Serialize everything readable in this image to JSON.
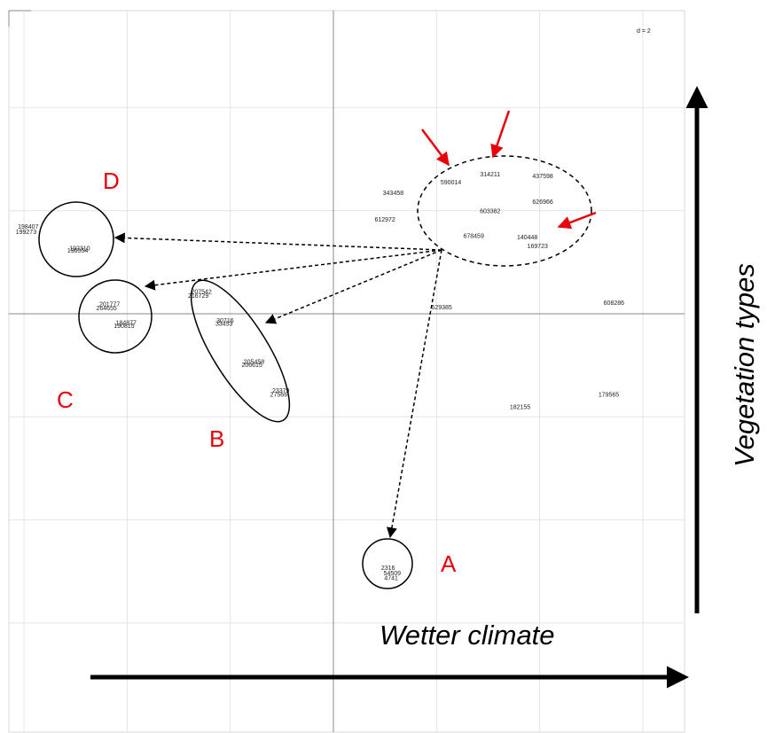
{
  "chart_data": {
    "type": "scatter",
    "title": "",
    "scale_label": "d = 2",
    "grid": true,
    "x_axis_annotation": "Wetter climate",
    "y_axis_annotation": "Vegetation types",
    "points": [
      {
        "id": "pt-590014",
        "label": "590014",
        "x": 1.14,
        "y": 1.27
      },
      {
        "id": "pt-314211",
        "label": "314211",
        "x": 1.52,
        "y": 1.35
      },
      {
        "id": "pt-437598",
        "label": "437598",
        "x": 2.03,
        "y": 1.33
      },
      {
        "id": "pt-343458",
        "label": "343458",
        "x": 0.58,
        "y": 1.17
      },
      {
        "id": "pt-626966",
        "label": "626966",
        "x": 2.03,
        "y": 1.08
      },
      {
        "id": "pt-603382",
        "label": "603382",
        "x": 1.52,
        "y": 0.99
      },
      {
        "id": "pt-612972",
        "label": "612972",
        "x": 0.5,
        "y": 0.91
      },
      {
        "id": "pt-678459",
        "label": "678459",
        "x": 1.36,
        "y": 0.75
      },
      {
        "id": "pt-140448",
        "label": "140448",
        "x": 1.88,
        "y": 0.74
      },
      {
        "id": "pt-169723",
        "label": "169723",
        "x": 1.98,
        "y": 0.65
      },
      {
        "id": "pt-629385",
        "label": "629385",
        "x": 1.05,
        "y": 0.06
      },
      {
        "id": "pt-608286",
        "label": "608286",
        "x": 2.72,
        "y": 0.1
      },
      {
        "id": "pt-182155",
        "label": "182155",
        "x": 1.81,
        "y": -0.91
      },
      {
        "id": "pt-179565",
        "label": "179565",
        "x": 2.67,
        "y": -0.79
      },
      {
        "id": "pt-198407",
        "label": "198407",
        "x": -2.96,
        "y": 0.84
      },
      {
        "id": "pt-199273",
        "label": "199273",
        "x": -2.98,
        "y": 0.79
      },
      {
        "id": "pt-192310",
        "label": "192310",
        "x": -2.46,
        "y": 0.63
      },
      {
        "id": "pt-196554",
        "label": "196554",
        "x": -2.48,
        "y": 0.61
      },
      {
        "id": "pt-201777",
        "label": "201777",
        "x": -2.17,
        "y": 0.09
      },
      {
        "id": "pt-264655",
        "label": "264655",
        "x": -2.2,
        "y": 0.05
      },
      {
        "id": "pt-184877",
        "label": "184877",
        "x": -2.01,
        "y": -0.09
      },
      {
        "id": "pt-190815",
        "label": "190815",
        "x": -2.03,
        "y": -0.12
      },
      {
        "id": "pt-207542",
        "label": "207542",
        "x": -1.28,
        "y": 0.21
      },
      {
        "id": "pt-216729",
        "label": "216729",
        "x": -1.31,
        "y": 0.17
      },
      {
        "id": "pt-30716",
        "label": "30716",
        "x": -1.05,
        "y": -0.07
      },
      {
        "id": "pt-33453",
        "label": "33453",
        "x": -1.06,
        "y": -0.1
      },
      {
        "id": "pt-205458",
        "label": "205458",
        "x": -0.77,
        "y": -0.47
      },
      {
        "id": "pt-206615",
        "label": "206615",
        "x": -0.79,
        "y": -0.5
      },
      {
        "id": "pt-23379",
        "label": "23379",
        "x": -0.51,
        "y": -0.75
      },
      {
        "id": "pt-27566",
        "label": "27566",
        "x": -0.53,
        "y": -0.79
      },
      {
        "id": "pt-2316",
        "label": "2316",
        "x": 0.53,
        "y": -2.47
      },
      {
        "id": "pt-54509",
        "label": "54509",
        "x": 0.57,
        "y": -2.52
      },
      {
        "id": "pt-4741",
        "label": "4741",
        "x": 0.56,
        "y": -2.57
      }
    ],
    "groups": [
      {
        "label": "A",
        "members": [
          "2316",
          "54509",
          "4741"
        ]
      },
      {
        "label": "B",
        "members": [
          "207542",
          "216729",
          "30716",
          "33453",
          "205458",
          "206615",
          "23379",
          "27566"
        ]
      },
      {
        "label": "C",
        "members": [
          "201777",
          "264655",
          "184877",
          "190815"
        ]
      },
      {
        "label": "D",
        "members": [
          "198407",
          "199273",
          "192310",
          "196554"
        ]
      }
    ],
    "xlim": [
      -3.17,
      3.42
    ],
    "ylim": [
      -3.15,
      2.94
    ]
  },
  "colors": {
    "group_labels": "#e8000b",
    "red_arrows": "#e8000b",
    "grid": "#e4e4e4",
    "axes": "#888888",
    "annotation": "#000000"
  }
}
